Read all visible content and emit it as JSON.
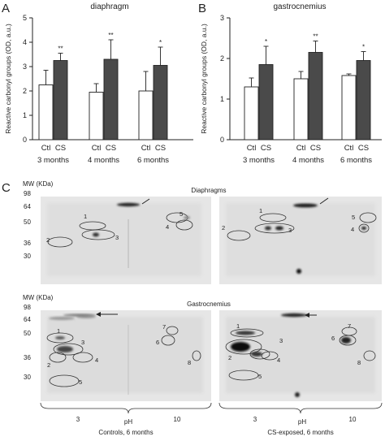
{
  "panels": {
    "a": "A",
    "b": "B",
    "c": "C"
  },
  "ylabel": "Reactive carbonyl groups (OD, a.u.)",
  "chart_data": [
    {
      "type": "bar",
      "title": "diaphragm",
      "ylabel": "Reactive carbonyl groups (OD, a.u.)",
      "ylim": [
        0,
        5
      ],
      "yticks": [
        0,
        1,
        2,
        3,
        4,
        5
      ],
      "bar_labels": [
        "Ctl",
        "CS"
      ],
      "categories": [
        "3 months",
        "4 months",
        "6 months"
      ],
      "series": [
        {
          "name": "Ctl",
          "values": [
            2.25,
            1.95,
            2.0
          ],
          "errors": [
            0.6,
            0.35,
            0.8
          ],
          "color": "#ffffff"
        },
        {
          "name": "CS",
          "values": [
            3.25,
            3.3,
            3.05
          ],
          "errors": [
            0.3,
            0.8,
            0.75
          ],
          "color": "#4a4a4a"
        }
      ],
      "significance": [
        "**",
        "**",
        "*"
      ]
    },
    {
      "type": "bar",
      "title": "gastrocnemius",
      "ylabel": "Reactive carbonyl groups (OD, a.u.)",
      "ylim": [
        0,
        3
      ],
      "yticks": [
        0,
        1,
        2,
        3
      ],
      "bar_labels": [
        "Ctl",
        "CS"
      ],
      "categories": [
        "3 months",
        "4 months",
        "6 months"
      ],
      "series": [
        {
          "name": "Ctl",
          "values": [
            1.3,
            1.5,
            1.58
          ],
          "errors": [
            0.22,
            0.18,
            0.04
          ],
          "color": "#ffffff"
        },
        {
          "name": "CS",
          "values": [
            1.85,
            2.15,
            1.95
          ],
          "errors": [
            0.45,
            0.28,
            0.22
          ],
          "color": "#4a4a4a"
        }
      ],
      "significance": [
        "*",
        "**",
        "*"
      ]
    }
  ],
  "gels": {
    "mw_label": "MW (KDa)",
    "markers": [
      "98",
      "64",
      "50",
      "36",
      "30"
    ],
    "diaphragm_title": "Diaphragms",
    "gastroc_title": "Gastrocnemius",
    "diaphragm_spots": [
      "1",
      "2",
      "3",
      "4",
      "5"
    ],
    "gastroc_spots": [
      "1",
      "2",
      "3",
      "4",
      "5",
      "6",
      "7",
      "8"
    ],
    "ph_label": "pH",
    "ph_low": "3",
    "ph_high": "10",
    "left_caption": "Controls, 6 months",
    "right_caption": "CS-exposed, 6 months"
  }
}
